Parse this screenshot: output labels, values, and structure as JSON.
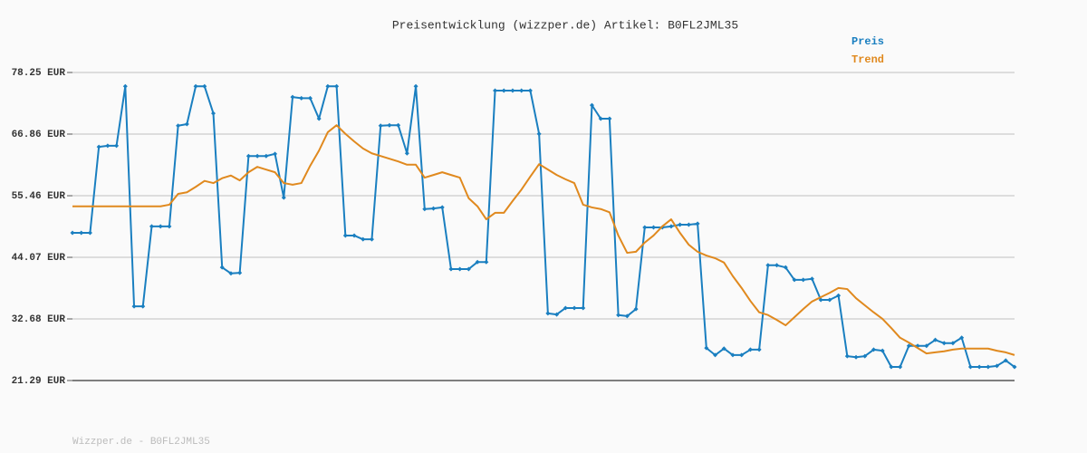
{
  "chart_data": {
    "type": "line",
    "title": "Preisentwicklung (wizzper.de) Artikel: B0FL2JML35",
    "footer": "Wizzper.de - B0FL2JML35",
    "ylim": [
      21.29,
      78.25
    ],
    "yticks": [
      {
        "value": 21.29,
        "label": "21.29 EUR"
      },
      {
        "value": 32.68,
        "label": "32.68 EUR"
      },
      {
        "value": 44.07,
        "label": "44.07 EUR"
      },
      {
        "value": 55.46,
        "label": "55.46 EUR"
      },
      {
        "value": 66.86,
        "label": "66.86 EUR"
      },
      {
        "value": 78.25,
        "label": "78.25 EUR"
      }
    ],
    "grid": true,
    "legend": "top-right",
    "series": [
      {
        "name": "Preis",
        "color": "#1a7fc0",
        "markers": true,
        "values": [
          48.6,
          48.6,
          48.6,
          64.5,
          64.7,
          64.7,
          75.7,
          35.0,
          35.0,
          49.8,
          49.8,
          49.8,
          68.4,
          68.7,
          75.7,
          75.7,
          70.7,
          42.2,
          41.1,
          41.2,
          62.8,
          62.8,
          62.8,
          63.2,
          55.1,
          73.7,
          73.5,
          73.5,
          69.7,
          75.7,
          75.7,
          48.1,
          48.1,
          47.4,
          47.4,
          68.4,
          68.5,
          68.5,
          63.3,
          75.7,
          53.0,
          53.1,
          53.3,
          41.9,
          41.9,
          41.9,
          43.2,
          43.2,
          74.9,
          74.9,
          74.9,
          74.9,
          74.9,
          66.9,
          33.7,
          33.5,
          34.7,
          34.7,
          34.7,
          72.2,
          69.7,
          69.7,
          33.4,
          33.2,
          34.5,
          49.6,
          49.6,
          49.6,
          49.8,
          50.1,
          50.1,
          50.3,
          27.3,
          26.0,
          27.2,
          26.0,
          26.0,
          27.0,
          27.0,
          42.6,
          42.6,
          42.2,
          39.9,
          39.9,
          40.1,
          36.2,
          36.2,
          37.0,
          25.8,
          25.6,
          25.8,
          27.0,
          26.8,
          23.8,
          23.8,
          27.7,
          27.7,
          27.7,
          28.8,
          28.2,
          28.2,
          29.2,
          23.8,
          23.8,
          23.8,
          24.0,
          25.0,
          23.8
        ]
      },
      {
        "name": "Trend",
        "color": "#e0891e",
        "markers": false,
        "values": [
          53.5,
          53.5,
          53.5,
          53.5,
          53.5,
          53.5,
          53.5,
          53.5,
          53.5,
          53.5,
          53.5,
          53.8,
          55.8,
          56.1,
          57.1,
          58.2,
          57.8,
          58.7,
          59.2,
          58.3,
          59.8,
          60.8,
          60.3,
          59.8,
          57.8,
          57.5,
          57.8,
          61.0,
          63.8,
          67.2,
          68.5,
          66.9,
          65.5,
          64.2,
          63.3,
          62.8,
          62.3,
          61.8,
          61.2,
          61.2,
          58.8,
          59.3,
          59.8,
          59.3,
          58.8,
          55.0,
          53.5,
          51.1,
          52.3,
          52.3,
          54.5,
          56.6,
          59.0,
          61.3,
          60.3,
          59.3,
          58.5,
          57.8,
          53.8,
          53.3,
          53.0,
          52.4,
          48.1,
          44.9,
          45.1,
          46.8,
          48.1,
          49.8,
          51.1,
          48.6,
          46.4,
          45.1,
          44.4,
          43.9,
          43.1,
          40.6,
          38.4,
          36.0,
          33.9,
          33.4,
          32.5,
          31.5,
          33.0,
          34.5,
          35.9,
          36.7,
          37.5,
          38.4,
          38.2,
          36.5,
          35.2,
          33.9,
          32.7,
          31.0,
          29.2,
          28.3,
          27.3,
          26.3,
          26.5,
          26.7,
          27.0,
          27.2,
          27.2,
          27.2,
          27.2,
          26.8,
          26.5,
          26.0
        ]
      }
    ]
  }
}
